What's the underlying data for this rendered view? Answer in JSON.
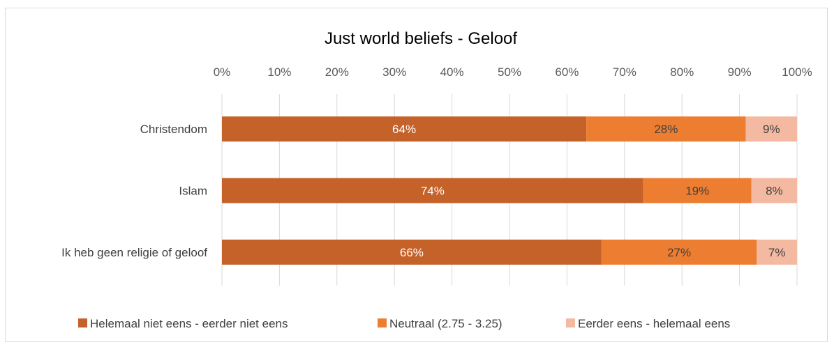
{
  "chart_data": {
    "type": "bar",
    "orientation": "horizontal",
    "stacked": "percent",
    "title": "Just world beliefs - Geloof",
    "categories": [
      "Christendom",
      "Islam",
      "Ik heb geen religie of geloof"
    ],
    "series": [
      {
        "name": "Helemaal niet eens - eerder niet eens",
        "color": "#c4622a",
        "values": [
          64,
          74,
          66
        ],
        "labels": [
          "64%",
          "74%",
          "66%"
        ],
        "label_color": "#ffffff"
      },
      {
        "name": "Neutraal (2.75 - 3.25)",
        "color": "#ed7d31",
        "values": [
          28,
          19,
          27
        ],
        "labels": [
          "28%",
          "19%",
          "27%"
        ],
        "label_color": "#404040"
      },
      {
        "name": "Eerder eens - helemaal eens",
        "color": "#f4b9a1",
        "values": [
          9,
          8,
          7
        ],
        "labels": [
          "9%",
          "8%",
          "7%"
        ],
        "label_color": "#404040"
      }
    ],
    "x_ticks": [
      "0%",
      "10%",
      "20%",
      "30%",
      "40%",
      "50%",
      "60%",
      "70%",
      "80%",
      "90%",
      "100%"
    ],
    "xlim": [
      0,
      100
    ],
    "x_axis_position": "top",
    "grid": true,
    "legend_position": "bottom"
  }
}
